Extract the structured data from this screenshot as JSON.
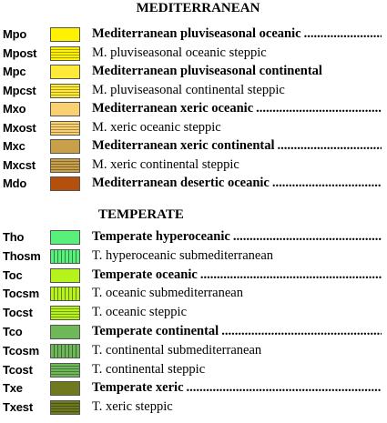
{
  "sections": {
    "mediterranean": {
      "title": "MEDITERRANEAN",
      "rows": [
        {
          "code": "Mpo",
          "label": "Mediterranean pluviseasonal oceanic",
          "bold": true,
          "leader": true,
          "color": "#fff200",
          "pattern": "none"
        },
        {
          "code": "Mpost",
          "label": "M. pluviseasonal oceanic steppic",
          "bold": false,
          "leader": false,
          "color": "#fff200",
          "pattern": "hlines"
        },
        {
          "code": "Mpc",
          "label": "Mediterranean pluviseasonal continental",
          "bold": true,
          "leader": false,
          "color": "#ffea3a",
          "pattern": "none"
        },
        {
          "code": "Mpcst",
          "label": "M. pluviseasonal continental steppic",
          "bold": false,
          "leader": false,
          "color": "#ffea3a",
          "pattern": "hlines"
        },
        {
          "code": "Mxo",
          "label": "Mediterranean xeric oceanic",
          "bold": true,
          "leader": true,
          "color": "#fbd070",
          "pattern": "none"
        },
        {
          "code": "Mxost",
          "label": "M. xeric oceanic steppic",
          "bold": false,
          "leader": false,
          "color": "#fbd070",
          "pattern": "hlines"
        },
        {
          "code": "Mxc",
          "label": "Mediterranean xeric continental",
          "bold": true,
          "leader": true,
          "color": "#c8a04a",
          "pattern": "none"
        },
        {
          "code": "Mxcst",
          "label": "M. xeric continental steppic",
          "bold": false,
          "leader": false,
          "color": "#c8a04a",
          "pattern": "hlines"
        },
        {
          "code": "Mdo",
          "label": "Mediterranean desertic oceanic",
          "bold": true,
          "leader": true,
          "color": "#b5500c",
          "pattern": "none"
        }
      ]
    },
    "temperate": {
      "title": "TEMPERATE",
      "rows": [
        {
          "code": "Tho",
          "label": "Temperate hyperoceanic",
          "bold": true,
          "leader": true,
          "color": "#57f07a",
          "pattern": "none"
        },
        {
          "code": "Thosm",
          "label": "T. hyperoceanic submediterranean",
          "bold": false,
          "leader": false,
          "color": "#57f07a",
          "pattern": "vlines"
        },
        {
          "code": "Toc",
          "label": "Temperate oceanic",
          "bold": true,
          "leader": true,
          "color": "#b6f21c",
          "pattern": "none"
        },
        {
          "code": "Tocsm",
          "label": "T. oceanic submediterranean",
          "bold": false,
          "leader": false,
          "color": "#b6f21c",
          "pattern": "vlines"
        },
        {
          "code": "Tocst",
          "label": "T. oceanic steppic",
          "bold": false,
          "leader": false,
          "color": "#b6f21c",
          "pattern": "hlines"
        },
        {
          "code": "Tco",
          "label": "Temperate continental",
          "bold": true,
          "leader": true,
          "color": "#6fb85a",
          "pattern": "none"
        },
        {
          "code": "Tcosm",
          "label": "T. continental submediterranean",
          "bold": false,
          "leader": false,
          "color": "#6fb85a",
          "pattern": "vlines"
        },
        {
          "code": "Tcost",
          "label": "T. continental steppic",
          "bold": false,
          "leader": false,
          "color": "#6fb85a",
          "pattern": "hlines"
        },
        {
          "code": "Txe",
          "label": "Temperate xeric",
          "bold": true,
          "leader": true,
          "color": "#6f7a1e",
          "pattern": "none"
        },
        {
          "code": "Txest",
          "label": "T. xeric steppic",
          "bold": false,
          "leader": false,
          "color": "#6f7a1e",
          "pattern": "hlines"
        }
      ]
    }
  }
}
